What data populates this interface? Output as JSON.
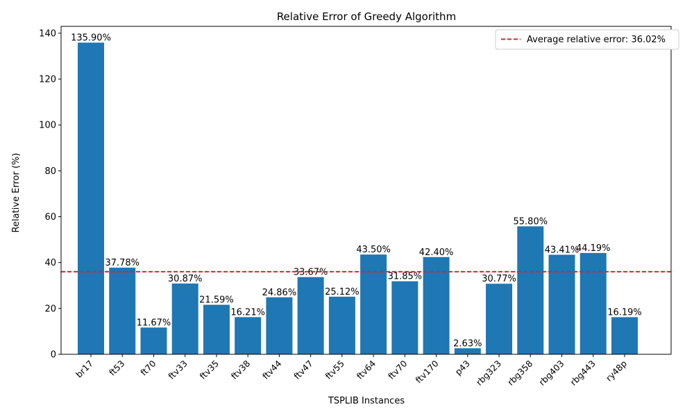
{
  "chart_data": {
    "type": "bar",
    "title": "Relative Error of Greedy Algorithm",
    "xlabel": "TSPLIB Instances",
    "ylabel": "Relative Error (%)",
    "ylim": [
      0,
      143
    ],
    "yticks": [
      0,
      20,
      40,
      60,
      80,
      100,
      120,
      140
    ],
    "grid": false,
    "categories": [
      "br17",
      "ft53",
      "ft70",
      "ftv33",
      "ftv35",
      "ftv38",
      "ftv44",
      "ftv47",
      "ftv55",
      "ftv64",
      "ftv70",
      "ftv170",
      "p43",
      "rbg323",
      "rbg358",
      "rbg403",
      "rbg443",
      "ry48p"
    ],
    "values": [
      135.9,
      37.78,
      11.67,
      30.87,
      21.59,
      16.21,
      24.86,
      33.67,
      25.12,
      43.5,
      31.85,
      42.4,
      2.63,
      30.77,
      55.8,
      43.41,
      44.19,
      16.19
    ],
    "data_labels": [
      "135.90%",
      "37.78%",
      "11.67%",
      "30.87%",
      "21.59%",
      "16.21%",
      "24.86%",
      "33.67%",
      "25.12%",
      "43.50%",
      "31.85%",
      "42.40%",
      "2.63%",
      "30.77%",
      "55.80%",
      "43.41%",
      "44.19%",
      "16.19%"
    ],
    "bar_color": "#1f77b4",
    "average_line": {
      "value": 36.02,
      "label": "Average relative error: 36.02%",
      "color": "#d62728",
      "style": "dashed"
    },
    "legend_position": "top-right"
  }
}
